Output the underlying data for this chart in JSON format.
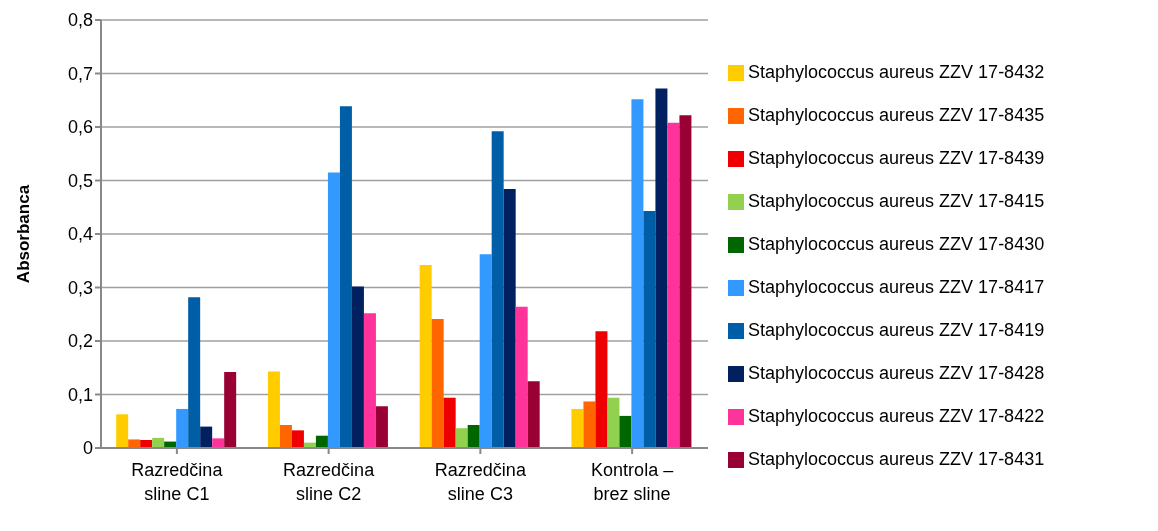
{
  "chart_data": {
    "type": "bar",
    "ylabel": "Absorbanca",
    "categories": [
      "Razredčina sline C1",
      "Razredčina sline C2",
      "Razredčina sline C3",
      "Kontrola – brez sline"
    ],
    "series": [
      {
        "name": "Staphylococcus aureus ZZV 17-8432",
        "color": "#ffcc00",
        "values": [
          0.063,
          0.143,
          0.342,
          0.073
        ]
      },
      {
        "name": "Staphylococcus aureus ZZV 17-8435",
        "color": "#ff6600",
        "values": [
          0.016,
          0.043,
          0.241,
          0.087
        ]
      },
      {
        "name": "Staphylococcus aureus ZZV 17-8439",
        "color": "#ee0000",
        "values": [
          0.015,
          0.033,
          0.094,
          0.218
        ]
      },
      {
        "name": "Staphylococcus aureus ZZV 17-8415",
        "color": "#92d050",
        "values": [
          0.019,
          0.01,
          0.037,
          0.094
        ]
      },
      {
        "name": "Staphylococcus aureus ZZV 17-8430",
        "color": "#006600",
        "values": [
          0.012,
          0.023,
          0.043,
          0.06
        ]
      },
      {
        "name": "Staphylococcus aureus ZZV 17-8417",
        "color": "#3399ff",
        "values": [
          0.073,
          0.515,
          0.362,
          0.652
        ]
      },
      {
        "name": "Staphylococcus aureus ZZV 17-8419",
        "color": "#005ea6",
        "values": [
          0.282,
          0.639,
          0.592,
          0.443
        ]
      },
      {
        "name": "Staphylococcus aureus ZZV 17-8428",
        "color": "#002060",
        "values": [
          0.04,
          0.302,
          0.484,
          0.672
        ]
      },
      {
        "name": "Staphylococcus aureus ZZV 17-8422",
        "color": "#ff3399",
        "values": [
          0.018,
          0.252,
          0.264,
          0.608
        ]
      },
      {
        "name": "Staphylococcus aureus ZZV 17-8431",
        "color": "#990033",
        "values": [
          0.142,
          0.078,
          0.125,
          0.622
        ]
      }
    ],
    "ylim": [
      0,
      0.8
    ],
    "yticks": [
      {
        "value": 0,
        "label": "0"
      },
      {
        "value": 0.1,
        "label": "0,1"
      },
      {
        "value": 0.2,
        "label": "0,2"
      },
      {
        "value": 0.3,
        "label": "0,3"
      },
      {
        "value": 0.4,
        "label": "0,4"
      },
      {
        "value": 0.5,
        "label": "0,5"
      },
      {
        "value": 0.6,
        "label": "0,6"
      },
      {
        "value": 0.7,
        "label": "0,7"
      },
      {
        "value": 0.8,
        "label": "0,8"
      }
    ],
    "grid": "y",
    "legend": "right"
  }
}
